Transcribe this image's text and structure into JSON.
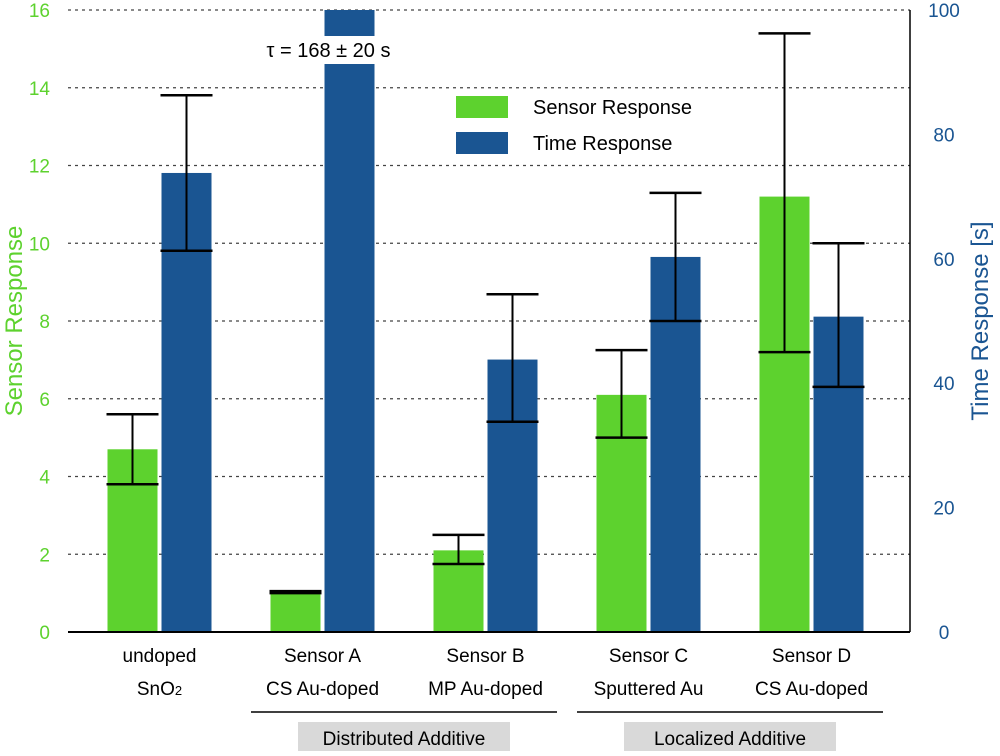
{
  "chart_data": {
    "type": "bar",
    "categories": [
      {
        "line1": "undoped",
        "line2": "SnO",
        "line2_sub": "2"
      },
      {
        "line1": "Sensor A",
        "line2": "CS Au-doped",
        "line2_sub": ""
      },
      {
        "line1": "Sensor B",
        "line2": "MP Au-doped",
        "line2_sub": ""
      },
      {
        "line1": "Sensor C",
        "line2": "Sputtered Au",
        "line2_sub": ""
      },
      {
        "line1": "Sensor D",
        "line2": "CS Au-doped",
        "line2_sub": ""
      }
    ],
    "series": [
      {
        "name": "Sensor Response",
        "axis": "left",
        "color": "#5dd22e",
        "values": [
          4.7,
          1.0,
          2.1,
          6.1,
          11.2
        ],
        "error_low": [
          3.8,
          1.0,
          1.75,
          5.0,
          7.2
        ],
        "error_high": [
          5.6,
          1.05,
          2.5,
          7.25,
          15.4
        ]
      },
      {
        "name": "Time Response",
        "axis": "right",
        "color": "#1a5592",
        "values": [
          73.8,
          100,
          43.8,
          60.3,
          50.7
        ],
        "error_low": [
          61.3,
          null,
          33.8,
          50.0,
          39.4
        ],
        "error_high": [
          86.3,
          null,
          54.3,
          70.6,
          62.5
        ],
        "truncated": [
          false,
          true,
          false,
          false,
          false
        ]
      }
    ],
    "annotations": [
      {
        "text": "τ = 168 ± 20 s",
        "category_index": 1,
        "series": "Time Response"
      }
    ],
    "groups": [
      {
        "label": "Distributed Additive",
        "categories": [
          1,
          2
        ]
      },
      {
        "label": "Localized Additive",
        "categories": [
          3,
          4
        ]
      }
    ],
    "left_axis": {
      "label": "Sensor Response",
      "min": 0,
      "max": 16,
      "ticks": [
        0,
        2,
        4,
        6,
        8,
        10,
        12,
        14,
        16
      ],
      "color": "#5dd22e"
    },
    "right_axis": {
      "label": "Time Response [s]",
      "min": 0,
      "max": 100,
      "ticks": [
        0,
        20,
        40,
        60,
        80,
        100
      ],
      "color": "#1a5592"
    },
    "grid": true,
    "legend_placement": "top-center"
  }
}
